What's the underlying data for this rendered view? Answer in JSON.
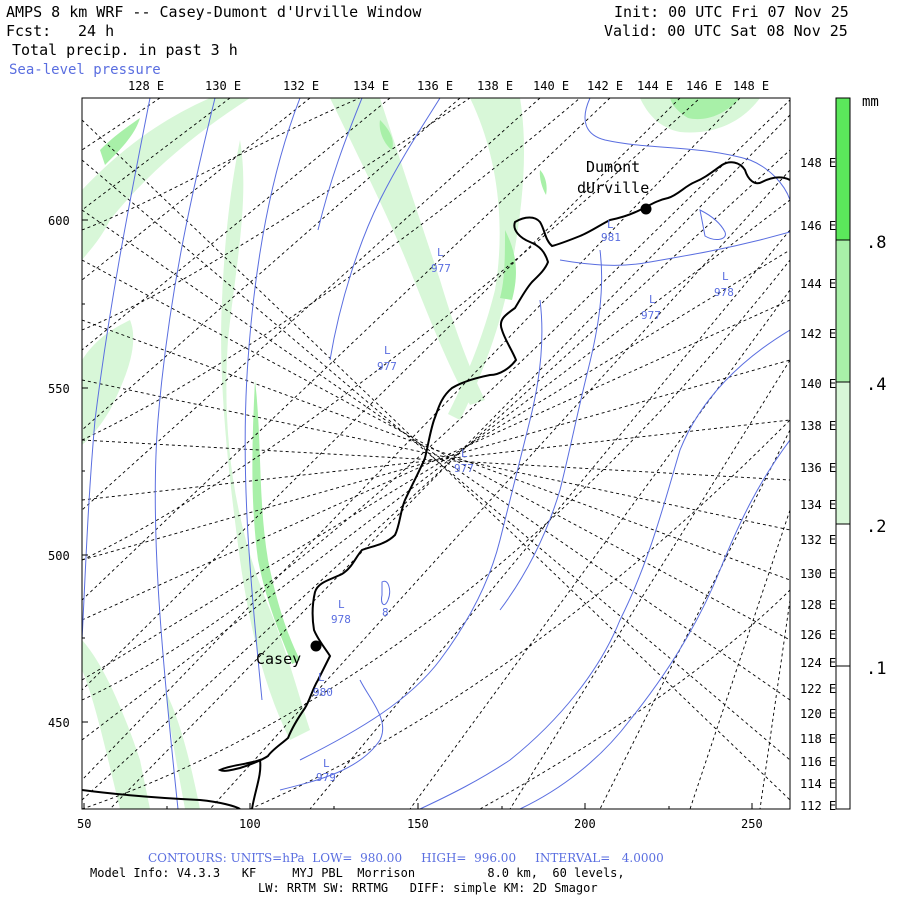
{
  "header": {
    "title": "AMPS 8 km WRF -- Casey-Dumont d'Urville Window",
    "forecast_label": "Fcst:",
    "forecast_hours": "24 h",
    "field": "Total precip. in past 3 h",
    "overlay": "Sea-level pressure",
    "init": "Init: 00 UTC Fri 07 Nov 25",
    "valid": "Valid: 00 UTC Sat 08 Nov 25"
  },
  "top_lon_labels": [
    "128 E",
    "130 E",
    "132 E",
    "134 E",
    "136 E",
    "138 E",
    "140 E",
    "142 E",
    "144 E",
    "146 E",
    "148 E"
  ],
  "right_lon_labels": [
    "148 E",
    "146 E",
    "144 E",
    "142 E",
    "140 E",
    "138 E",
    "136 E",
    "134 E",
    "132 E",
    "130 E",
    "128 E",
    "126 E",
    "124 E",
    "122 E",
    "120 E",
    "118 E",
    "116 E",
    "114 E",
    "112 E"
  ],
  "x_ticks": [
    "50",
    "100",
    "150",
    "200",
    "250"
  ],
  "y_ticks": [
    "600",
    "550",
    "500",
    "450"
  ],
  "stations": [
    {
      "name": "Dumont",
      "name2": "dUrville"
    },
    {
      "name": "Casey"
    }
  ],
  "pressure_labels": [
    {
      "letter": "L",
      "value": "981"
    },
    {
      "letter": "L",
      "value": "977"
    },
    {
      "letter": "L",
      "value": "978"
    },
    {
      "letter": "L",
      "value": "977"
    },
    {
      "letter": "L",
      "value": "977"
    },
    {
      "letter": "L",
      "value": "977"
    },
    {
      "letter": "L",
      "value": "978"
    },
    {
      "letter": "L",
      "value": "980"
    },
    {
      "letter": "L",
      "value": "979"
    },
    {
      "letter": "",
      "value": "8"
    }
  ],
  "colorbar": {
    "unit": "mm",
    "levels": [
      ".8",
      ".4",
      ".2",
      ".1"
    ],
    "colors": [
      "#5be85b",
      "#a8f0a8",
      "#d8f7d8",
      "#ffffff"
    ]
  },
  "footer": {
    "contours": "CONTOURS: UNITS=hPa  LOW=  980.00     HIGH=  996.00     INTERVAL=   4.0000",
    "model_info": "Model Info: V4.3.3   KF     MYJ PBL  Morrison          8.0 km,  60 levels,",
    "physics": "LW: RRTM SW: RRTMG   DIFF: simple KM: 2D Smagor"
  }
}
